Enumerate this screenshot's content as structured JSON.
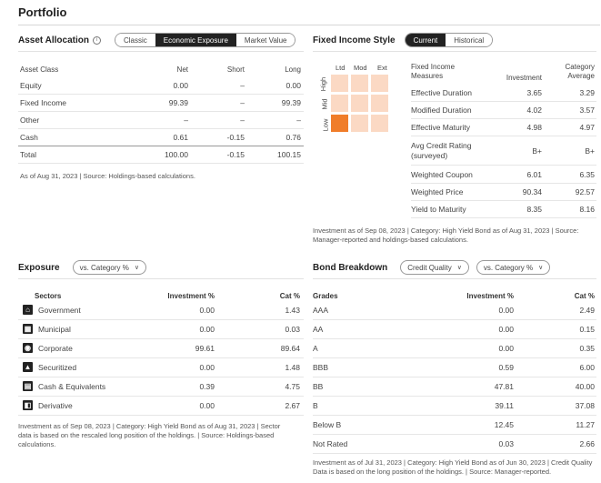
{
  "page_title": "Portfolio",
  "asset_allocation": {
    "title": "Asset Allocation",
    "toggle": [
      "Classic",
      "Economic Exposure",
      "Market Value"
    ],
    "columns": [
      "Asset Class",
      "Net",
      "Short",
      "Long"
    ],
    "rows": [
      {
        "label": "Equity",
        "net": "0.00",
        "short": "–",
        "long": "0.00"
      },
      {
        "label": "Fixed Income",
        "net": "99.39",
        "short": "–",
        "long": "99.39"
      },
      {
        "label": "Other",
        "net": "–",
        "short": "–",
        "long": "–"
      },
      {
        "label": "Cash",
        "net": "0.61",
        "short": "-0.15",
        "long": "0.76"
      },
      {
        "label": "Total",
        "net": "100.00",
        "short": "-0.15",
        "long": "100.15"
      }
    ],
    "note": "As of Aug 31, 2023 | Source: Holdings-based calculations."
  },
  "fixed_income_style": {
    "title": "Fixed Income Style",
    "toggle": [
      "Current",
      "Historical"
    ],
    "grid_columns": [
      "Ltd",
      "Mod",
      "Ext"
    ],
    "grid_rows": [
      "High",
      "Mid",
      "Low"
    ],
    "active_cell": "Low-Ltd",
    "header_label_line1": "Fixed Income",
    "header_label_line2": "Measures",
    "header_investment": "Investment",
    "header_category_line1": "Category",
    "header_category_line2": "Average",
    "measures": [
      {
        "label": "Effective Duration",
        "investment": "3.65",
        "category": "3.29"
      },
      {
        "label": "Modified Duration",
        "investment": "4.02",
        "category": "3.57"
      },
      {
        "label": "Effective Maturity",
        "investment": "4.98",
        "category": "4.97"
      },
      {
        "label": "Avg Credit Rating\n(surveyed)",
        "investment": "B+",
        "category": "B+"
      },
      {
        "label": "Weighted Coupon",
        "investment": "6.01",
        "category": "6.35"
      },
      {
        "label": "Weighted Price",
        "investment": "90.34",
        "category": "92.57"
      },
      {
        "label": "Yield to Maturity",
        "investment": "8.35",
        "category": "8.16"
      }
    ],
    "note_line1": "Investment as of Sep 08, 2023 | Category: High Yield Bond as of Aug 31, 2023 | Source:",
    "note_line2": "Manager-reported and holdings-based calculations."
  },
  "exposure": {
    "title": "Exposure",
    "dropdown": "vs. Category %",
    "columns": [
      "Sectors",
      "Investment %",
      "Cat %"
    ],
    "rows": [
      {
        "icon": "government-icon",
        "label": "Government",
        "investment": "0.00",
        "cat": "1.43"
      },
      {
        "icon": "municipal-icon",
        "label": "Municipal",
        "investment": "0.00",
        "cat": "0.03"
      },
      {
        "icon": "corporate-icon",
        "label": "Corporate",
        "investment": "99.61",
        "cat": "89.64"
      },
      {
        "icon": "securitized-icon",
        "label": "Securitized",
        "investment": "0.00",
        "cat": "1.48"
      },
      {
        "icon": "cash-icon",
        "label": "Cash & Equivalents",
        "investment": "0.39",
        "cat": "4.75"
      },
      {
        "icon": "derivative-icon",
        "label": "Derivative",
        "investment": "0.00",
        "cat": "2.67"
      }
    ],
    "note_line1": "Investment as of Sep 08, 2023 | Category: High Yield Bond as of Aug 31, 2023 | Sector",
    "note_line2": "data is based on the rescaled long position of the holdings. | Source: Holdings-based",
    "note_line3": "calculations."
  },
  "bond_breakdown": {
    "title": "Bond Breakdown",
    "dropdown1": "Credit Quality",
    "dropdown2": "vs. Category %",
    "columns": [
      "Grades",
      "Investment %",
      "Cat %"
    ],
    "rows": [
      {
        "label": "AAA",
        "investment": "0.00",
        "cat": "2.49"
      },
      {
        "label": "AA",
        "investment": "0.00",
        "cat": "0.15"
      },
      {
        "label": "A",
        "investment": "0.00",
        "cat": "0.35"
      },
      {
        "label": "BBB",
        "investment": "0.59",
        "cat": "6.00"
      },
      {
        "label": "BB",
        "investment": "47.81",
        "cat": "40.00"
      },
      {
        "label": "B",
        "investment": "39.11",
        "cat": "37.08"
      },
      {
        "label": "Below B",
        "investment": "12.45",
        "cat": "11.27"
      },
      {
        "label": "Not Rated",
        "investment": "0.03",
        "cat": "2.66"
      }
    ],
    "note_line1": "Investment as of Jul 31, 2023 | Category: High Yield Bond as of Jun 30, 2023 | Credit Quality",
    "note_line2": "Data is based on the long position of the holdings. | Source: Manager-reported."
  }
}
